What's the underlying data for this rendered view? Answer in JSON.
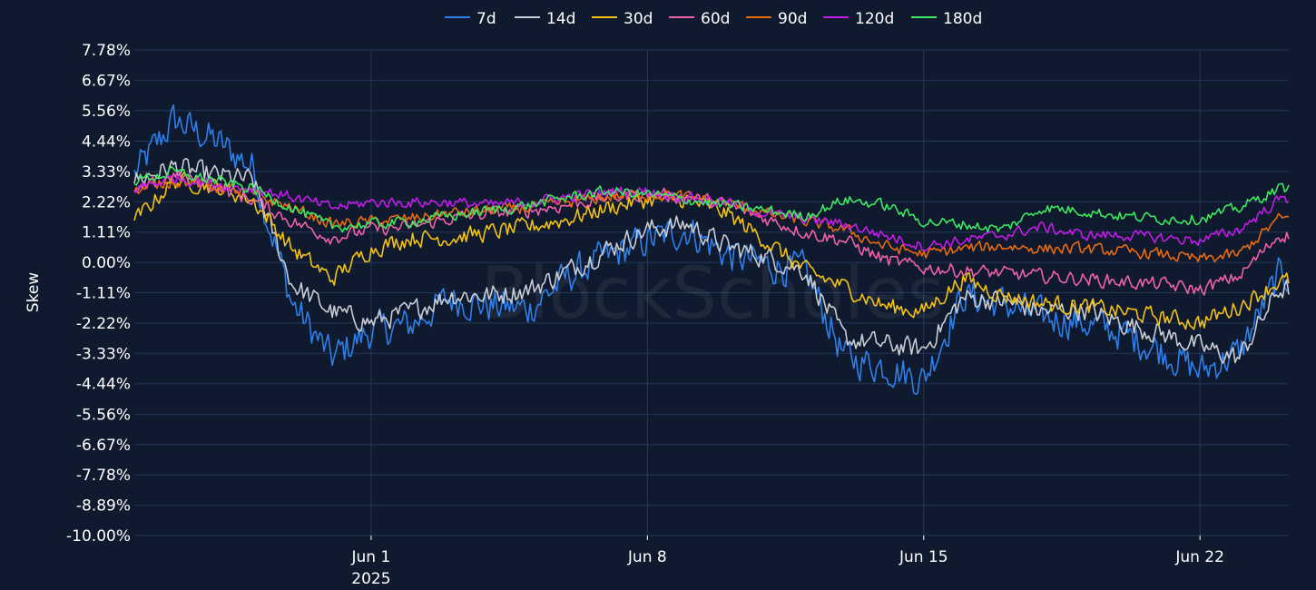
{
  "chart_data": {
    "type": "line",
    "title": "",
    "xlabel": "",
    "ylabel": "Skew",
    "watermark": "BlockScholes",
    "legend_position": "top-center",
    "grid": true,
    "x_range": [
      "2025-05-26T00:00",
      "2025-06-24T06:00"
    ],
    "y_range": [
      -10.0,
      7.78
    ],
    "y_ticks": [
      "7.78%",
      "6.67%",
      "5.56%",
      "4.44%",
      "3.33%",
      "2.22%",
      "1.11%",
      "0.00%",
      "-1.11%",
      "-2.22%",
      "-3.33%",
      "-4.44%",
      "-5.56%",
      "-6.67%",
      "-7.78%",
      "-8.89%",
      "-10.00%"
    ],
    "y_tick_values": [
      7.78,
      6.67,
      5.56,
      4.44,
      3.33,
      2.22,
      1.11,
      0.0,
      -1.11,
      -2.22,
      -3.33,
      -4.44,
      -5.56,
      -6.67,
      -7.78,
      -8.89,
      -10.0
    ],
    "x_ticks": [
      {
        "date": "2025-06-01",
        "label": "Jun 1",
        "sub": "2025"
      },
      {
        "date": "2025-06-08",
        "label": "Jun 8",
        "sub": ""
      },
      {
        "date": "2025-06-15",
        "label": "Jun 15",
        "sub": ""
      },
      {
        "date": "2025-06-22",
        "label": "Jun 22",
        "sub": ""
      }
    ],
    "colors": {
      "background": "#0f1a2e",
      "grid": "#24375a",
      "text": "#ffffff"
    },
    "series": [
      {
        "name": "7d",
        "color": "#2f7fe8",
        "noise": 0.9,
        "x": [
          "2025-05-26",
          "2025-05-27",
          "2025-05-28",
          "2025-05-29",
          "2025-05-30",
          "2025-05-31",
          "2025-06-01",
          "2025-06-02",
          "2025-06-03",
          "2025-06-04",
          "2025-06-05",
          "2025-06-06",
          "2025-06-07",
          "2025-06-08",
          "2025-06-09",
          "2025-06-10",
          "2025-06-11",
          "2025-06-12",
          "2025-06-13",
          "2025-06-14",
          "2025-06-15",
          "2025-06-16",
          "2025-06-17",
          "2025-06-18",
          "2025-06-19",
          "2025-06-20",
          "2025-06-21",
          "2025-06-22",
          "2025-06-23",
          "2025-06-24"
        ],
        "y": [
          3.2,
          5.2,
          4.5,
          3.5,
          -1.5,
          -3.5,
          -2.5,
          -2.3,
          -1.3,
          -1.6,
          -1.7,
          -0.5,
          0.2,
          0.8,
          1.2,
          0.3,
          -0.1,
          -0.3,
          -3.5,
          -3.8,
          -4.3,
          -1.2,
          -1.5,
          -2.0,
          -2.2,
          -2.6,
          -3.2,
          -4.0,
          -3.3,
          -0.5
        ]
      },
      {
        "name": "14d",
        "color": "#c9ccd2",
        "noise": 0.55,
        "x": [
          "2025-05-26",
          "2025-05-27",
          "2025-05-28",
          "2025-05-29",
          "2025-05-30",
          "2025-05-31",
          "2025-06-01",
          "2025-06-02",
          "2025-06-03",
          "2025-06-04",
          "2025-06-05",
          "2025-06-06",
          "2025-06-07",
          "2025-06-08",
          "2025-06-09",
          "2025-06-10",
          "2025-06-11",
          "2025-06-12",
          "2025-06-13",
          "2025-06-14",
          "2025-06-15",
          "2025-06-16",
          "2025-06-17",
          "2025-06-18",
          "2025-06-19",
          "2025-06-20",
          "2025-06-21",
          "2025-06-22",
          "2025-06-23",
          "2025-06-24"
        ],
        "y": [
          3.0,
          3.5,
          3.2,
          3.0,
          -0.8,
          -1.8,
          -2.2,
          -1.8,
          -1.2,
          -1.2,
          -1.0,
          -0.3,
          0.5,
          1.2,
          1.4,
          0.6,
          0.2,
          -0.3,
          -2.8,
          -3.0,
          -3.2,
          -1.3,
          -1.4,
          -1.8,
          -1.7,
          -2.2,
          -2.6,
          -3.1,
          -3.5,
          -1.0
        ]
      },
      {
        "name": "30d",
        "color": "#f2c114",
        "noise": 0.45,
        "x": [
          "2025-05-26",
          "2025-05-27",
          "2025-05-28",
          "2025-05-29",
          "2025-05-30",
          "2025-05-31",
          "2025-06-01",
          "2025-06-02",
          "2025-06-03",
          "2025-06-04",
          "2025-06-05",
          "2025-06-06",
          "2025-06-07",
          "2025-06-08",
          "2025-06-09",
          "2025-06-10",
          "2025-06-11",
          "2025-06-12",
          "2025-06-13",
          "2025-06-14",
          "2025-06-15",
          "2025-06-16",
          "2025-06-17",
          "2025-06-18",
          "2025-06-19",
          "2025-06-20",
          "2025-06-21",
          "2025-06-22",
          "2025-06-23",
          "2025-06-24"
        ],
        "y": [
          1.5,
          3.0,
          2.8,
          2.3,
          0.5,
          -0.6,
          0.5,
          0.9,
          0.9,
          1.1,
          1.3,
          1.6,
          2.0,
          2.3,
          2.3,
          1.8,
          0.8,
          -0.3,
          -0.9,
          -1.6,
          -1.8,
          -0.6,
          -1.2,
          -1.5,
          -1.6,
          -1.8,
          -2.0,
          -2.2,
          -1.6,
          -0.7
        ]
      },
      {
        "name": "60d",
        "color": "#f060a8",
        "noise": 0.35,
        "x": [
          "2025-05-26",
          "2025-05-27",
          "2025-05-28",
          "2025-05-29",
          "2025-05-30",
          "2025-05-31",
          "2025-06-01",
          "2025-06-02",
          "2025-06-03",
          "2025-06-04",
          "2025-06-05",
          "2025-06-06",
          "2025-06-07",
          "2025-06-08",
          "2025-06-09",
          "2025-06-10",
          "2025-06-11",
          "2025-06-12",
          "2025-06-13",
          "2025-06-14",
          "2025-06-15",
          "2025-06-16",
          "2025-06-17",
          "2025-06-18",
          "2025-06-19",
          "2025-06-20",
          "2025-06-21",
          "2025-06-22",
          "2025-06-23",
          "2025-06-24"
        ],
        "y": [
          2.5,
          3.2,
          2.8,
          2.3,
          1.5,
          0.9,
          1.2,
          1.3,
          1.6,
          1.8,
          1.9,
          2.1,
          2.4,
          2.5,
          2.4,
          2.1,
          1.6,
          1.1,
          0.8,
          0.1,
          -0.2,
          -0.3,
          -0.4,
          -0.5,
          -0.6,
          -0.7,
          -0.8,
          -1.0,
          -0.5,
          1.0
        ]
      },
      {
        "name": "90d",
        "color": "#e86a10",
        "noise": 0.3,
        "x": [
          "2025-05-26",
          "2025-05-27",
          "2025-05-28",
          "2025-05-29",
          "2025-05-30",
          "2025-05-31",
          "2025-06-01",
          "2025-06-02",
          "2025-06-03",
          "2025-06-04",
          "2025-06-05",
          "2025-06-06",
          "2025-06-07",
          "2025-06-08",
          "2025-06-09",
          "2025-06-10",
          "2025-06-11",
          "2025-06-12",
          "2025-06-13",
          "2025-06-14",
          "2025-06-15",
          "2025-06-16",
          "2025-06-17",
          "2025-06-18",
          "2025-06-19",
          "2025-06-20",
          "2025-06-21",
          "2025-06-22",
          "2025-06-23",
          "2025-06-24"
        ],
        "y": [
          2.6,
          3.0,
          2.8,
          2.5,
          2.0,
          1.4,
          1.5,
          1.6,
          1.8,
          1.9,
          2.0,
          2.2,
          2.4,
          2.5,
          2.4,
          2.2,
          1.8,
          1.5,
          1.2,
          0.6,
          0.3,
          0.5,
          0.6,
          0.5,
          0.5,
          0.4,
          0.3,
          0.1,
          0.3,
          1.6
        ]
      },
      {
        "name": "120d",
        "color": "#c21ce8",
        "noise": 0.28,
        "x": [
          "2025-05-26",
          "2025-05-27",
          "2025-05-28",
          "2025-05-29",
          "2025-05-30",
          "2025-05-31",
          "2025-06-01",
          "2025-06-02",
          "2025-06-03",
          "2025-06-04",
          "2025-06-05",
          "2025-06-06",
          "2025-06-07",
          "2025-06-08",
          "2025-06-09",
          "2025-06-10",
          "2025-06-11",
          "2025-06-12",
          "2025-06-13",
          "2025-06-14",
          "2025-06-15",
          "2025-06-16",
          "2025-06-17",
          "2025-06-18",
          "2025-06-19",
          "2025-06-20",
          "2025-06-21",
          "2025-06-22",
          "2025-06-23",
          "2025-06-24"
        ],
        "y": [
          2.7,
          3.1,
          2.9,
          2.7,
          2.4,
          2.0,
          2.2,
          2.2,
          2.2,
          2.1,
          2.2,
          2.4,
          2.6,
          2.6,
          2.4,
          2.2,
          1.8,
          1.6,
          1.4,
          1.0,
          0.6,
          0.8,
          1.0,
          1.3,
          1.0,
          1.0,
          0.9,
          0.8,
          1.2,
          2.3
        ]
      },
      {
        "name": "180d",
        "color": "#3ee860",
        "noise": 0.28,
        "x": [
          "2025-05-26",
          "2025-05-27",
          "2025-05-28",
          "2025-05-29",
          "2025-05-30",
          "2025-05-31",
          "2025-06-01",
          "2025-06-02",
          "2025-06-03",
          "2025-06-04",
          "2025-06-05",
          "2025-06-06",
          "2025-06-07",
          "2025-06-08",
          "2025-06-09",
          "2025-06-10",
          "2025-06-11",
          "2025-06-12",
          "2025-06-13",
          "2025-06-14",
          "2025-06-15",
          "2025-06-16",
          "2025-06-17",
          "2025-06-18",
          "2025-06-19",
          "2025-06-20",
          "2025-06-21",
          "2025-06-22",
          "2025-06-23",
          "2025-06-24"
        ],
        "y": [
          3.0,
          3.3,
          3.0,
          2.7,
          2.0,
          1.3,
          1.4,
          1.5,
          1.7,
          1.9,
          2.1,
          2.4,
          2.6,
          2.5,
          2.3,
          2.1,
          1.9,
          1.7,
          2.3,
          2.1,
          1.5,
          1.4,
          1.2,
          2.0,
          1.9,
          1.7,
          1.6,
          1.6,
          2.0,
          2.7
        ]
      }
    ]
  }
}
